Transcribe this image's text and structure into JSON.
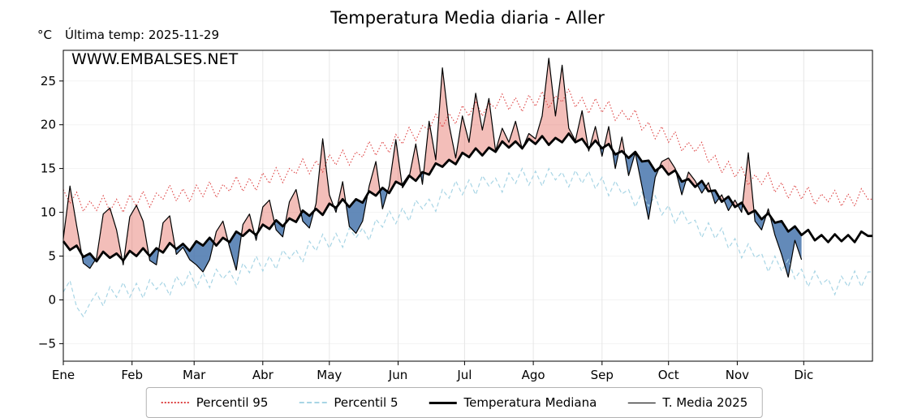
{
  "header": {
    "title": "Temperatura Media diaria - Aller",
    "unit_label": "°C",
    "last_temp_label": "Última temp: 2025-11-29",
    "watermark": "WWW.EMBALSES.NET"
  },
  "colors": {
    "accent_blue": "#2e7ebc",
    "p95": "#dd4040",
    "p5": "#a8d5e5",
    "median": "#000000",
    "t2025": "#000000",
    "fill_above": "rgba(224,92,80,0.40)",
    "fill_below": "rgba(55,105,165,0.78)",
    "grid_v": "#e6e6e6",
    "grid_h": "#f3f3f3"
  },
  "legend": {
    "items": [
      {
        "label": "Percentil 95",
        "line": "red-dotted"
      },
      {
        "label": "Percentil 5",
        "line": "lightblue-dashed"
      },
      {
        "label": "Temperatura Mediana",
        "line": "black-thick"
      },
      {
        "label": "T. Media 2025",
        "line": "black-thin"
      }
    ]
  },
  "chart_data": {
    "type": "line",
    "title": "Temperatura Media diaria - Aller",
    "ylabel": "°C",
    "ylim": [
      -7,
      28.5
    ],
    "yticks": [
      -5,
      0,
      5,
      10,
      15,
      20,
      25
    ],
    "grid": "light",
    "legend_position": "bottom",
    "last_measurement_date": "2025-11-29",
    "sample_step_days": 3,
    "months": {
      "labels": [
        "Ene",
        "Feb",
        "Mar",
        "Abr",
        "May",
        "Jun",
        "Jul",
        "Ago",
        "Sep",
        "Oct",
        "Nov",
        "Dic"
      ],
      "start_days": [
        0,
        31,
        59,
        90,
        120,
        151,
        181,
        212,
        243,
        273,
        304,
        334
      ],
      "total_days": 365
    },
    "series": [
      {
        "key": "percentil_95",
        "name": "Percentil 95",
        "values": [
          12.6,
          11.0,
          12.3,
          10.1,
          11.3,
          10.2,
          11.9,
          10.1,
          11.5,
          10.0,
          12.0,
          10.7,
          12.4,
          10.6,
          12.2,
          11.5,
          13.1,
          11.3,
          12.7,
          11.2,
          13.1,
          11.8,
          13.5,
          11.7,
          13.2,
          12.4,
          14.1,
          12.4,
          13.9,
          12.5,
          14.5,
          13.3,
          15.1,
          13.4,
          15.0,
          14.4,
          16.1,
          14.4,
          15.9,
          14.6,
          16.6,
          15.4,
          17.1,
          15.4,
          16.9,
          16.3,
          18.1,
          16.5,
          18.1,
          16.8,
          18.9,
          17.8,
          19.7,
          18.2,
          19.9,
          19.4,
          21.2,
          19.7,
          21.3,
          20.1,
          22.2,
          21.0,
          22.7,
          21.0,
          22.5,
          21.9,
          23.5,
          21.7,
          23.1,
          21.5,
          23.4,
          22.1,
          23.8,
          21.9,
          23.3,
          22.6,
          24.1,
          22.0,
          23.1,
          21.3,
          23.0,
          21.4,
          22.7,
          20.5,
          21.6,
          20.5,
          21.7,
          19.4,
          20.3,
          18.4,
          19.8,
          18.0,
          19.2,
          17.0,
          18.0,
          16.9,
          18.0,
          15.7,
          16.5,
          14.5,
          15.8,
          14.0,
          15.2,
          13.1,
          14.3,
          13.2,
          14.5,
          12.3,
          13.4,
          11.6,
          13.1,
          11.5,
          12.9,
          10.9,
          12.1,
          11.2,
          12.5,
          10.7,
          12.1,
          10.7,
          12.7,
          11.5
        ]
      },
      {
        "key": "percentil_5",
        "name": "Percentil 5",
        "values": [
          0.9,
          2.2,
          -0.8,
          -1.9,
          -0.4,
          0.8,
          -0.7,
          1.5,
          0.3,
          2.0,
          0.3,
          1.9,
          0.2,
          2.3,
          1.2,
          2.1,
          0.5,
          2.7,
          1.5,
          3.2,
          1.4,
          3.1,
          1.4,
          3.5,
          2.4,
          3.3,
          1.8,
          4.2,
          3.1,
          5.0,
          3.3,
          5.0,
          3.5,
          5.7,
          4.7,
          5.7,
          4.3,
          6.7,
          5.6,
          7.5,
          5.9,
          7.6,
          6.0,
          8.2,
          7.1,
          8.2,
          6.8,
          9.2,
          8.3,
          10.2,
          8.7,
          10.5,
          9.0,
          11.4,
          10.4,
          11.5,
          10.1,
          12.6,
          11.6,
          13.6,
          12.0,
          13.7,
          12.0,
          14.2,
          13.0,
          13.9,
          12.3,
          14.5,
          13.3,
          15.0,
          13.1,
          14.7,
          13.0,
          15.0,
          13.7,
          14.6,
          12.9,
          14.8,
          13.3,
          14.7,
          12.7,
          14.0,
          11.9,
          13.6,
          12.1,
          12.6,
          10.6,
          12.3,
          10.7,
          11.9,
          9.7,
          10.8,
          8.7,
          10.3,
          8.7,
          9.1,
          7.1,
          8.8,
          7.0,
          8.2,
          5.9,
          7.0,
          4.8,
          6.4,
          4.8,
          5.3,
          3.2,
          5.0,
          3.3,
          4.6,
          2.4,
          3.5,
          1.5,
          3.3,
          1.8,
          2.4,
          0.6,
          2.7,
          1.5,
          3.3,
          1.5,
          3.2
        ]
      },
      {
        "key": "mediana",
        "name": "Temperatura Mediana",
        "values": [
          6.7,
          5.7,
          6.2,
          4.9,
          5.3,
          4.4,
          5.5,
          4.8,
          5.3,
          4.5,
          5.6,
          5.0,
          5.9,
          5.0,
          5.9,
          5.4,
          6.5,
          5.8,
          6.4,
          5.6,
          6.7,
          6.2,
          7.1,
          6.2,
          7.1,
          6.6,
          7.8,
          7.3,
          8.0,
          7.4,
          8.6,
          8.1,
          9.1,
          8.4,
          9.3,
          8.9,
          10.2,
          9.6,
          10.4,
          9.7,
          11.0,
          10.5,
          11.5,
          10.6,
          11.5,
          11.1,
          12.4,
          11.9,
          12.8,
          12.2,
          13.5,
          13.1,
          14.2,
          13.6,
          14.6,
          14.3,
          15.6,
          15.2,
          16.0,
          15.5,
          16.8,
          16.3,
          17.3,
          16.5,
          17.4,
          16.9,
          18.1,
          17.4,
          18.1,
          17.3,
          18.4,
          17.8,
          18.7,
          17.7,
          18.5,
          18.0,
          19.0,
          18.0,
          18.4,
          17.3,
          18.2,
          17.3,
          17.8,
          16.6,
          17.0,
          16.2,
          16.9,
          15.8,
          15.9,
          14.7,
          15.3,
          14.3,
          14.8,
          13.5,
          13.8,
          12.9,
          13.6,
          12.4,
          12.5,
          11.2,
          11.8,
          10.6,
          11.1,
          9.8,
          10.2,
          9.2,
          9.9,
          8.8,
          9.0,
          7.8,
          8.4,
          7.4,
          8.0,
          6.8,
          7.4,
          6.6,
          7.5,
          6.7,
          7.4,
          6.6,
          7.8,
          7.3
        ]
      },
      {
        "key": "t_media_2025",
        "name": "T. Media 2025",
        "values": [
          7.0,
          13.0,
          8.5,
          4.2,
          3.6,
          4.8,
          9.8,
          10.5,
          8.0,
          4.0,
          9.5,
          10.8,
          9.0,
          4.5,
          4.0,
          8.8,
          9.6,
          5.2,
          6.0,
          4.6,
          4.0,
          3.2,
          4.6,
          7.8,
          9.0,
          6.0,
          3.4,
          8.6,
          9.8,
          6.8,
          10.6,
          11.4,
          8.0,
          7.2,
          11.2,
          12.6,
          9.0,
          8.2,
          11.0,
          18.4,
          12.0,
          10.0,
          13.5,
          8.4,
          7.6,
          9.0,
          13.0,
          15.8,
          10.4,
          13.0,
          18.3,
          12.8,
          14.0,
          17.8,
          13.2,
          20.4,
          16.0,
          26.5,
          20.0,
          16.2,
          21.0,
          18.0,
          23.6,
          19.4,
          23.0,
          17.0,
          19.6,
          18.0,
          20.4,
          17.2,
          19.0,
          18.4,
          21.0,
          27.6,
          21.0,
          26.8,
          19.6,
          18.2,
          21.6,
          17.0,
          19.8,
          16.4,
          19.8,
          15.0,
          18.6,
          14.2,
          16.8,
          13.0,
          9.2,
          14.0,
          15.8,
          16.2,
          15.0,
          12.0,
          14.6,
          13.6,
          12.2,
          13.4,
          11.0,
          12.0,
          10.2,
          11.4,
          10.0,
          16.8,
          9.0,
          8.0,
          10.4,
          7.4,
          5.2,
          2.6,
          6.8,
          4.6
        ]
      }
    ]
  }
}
